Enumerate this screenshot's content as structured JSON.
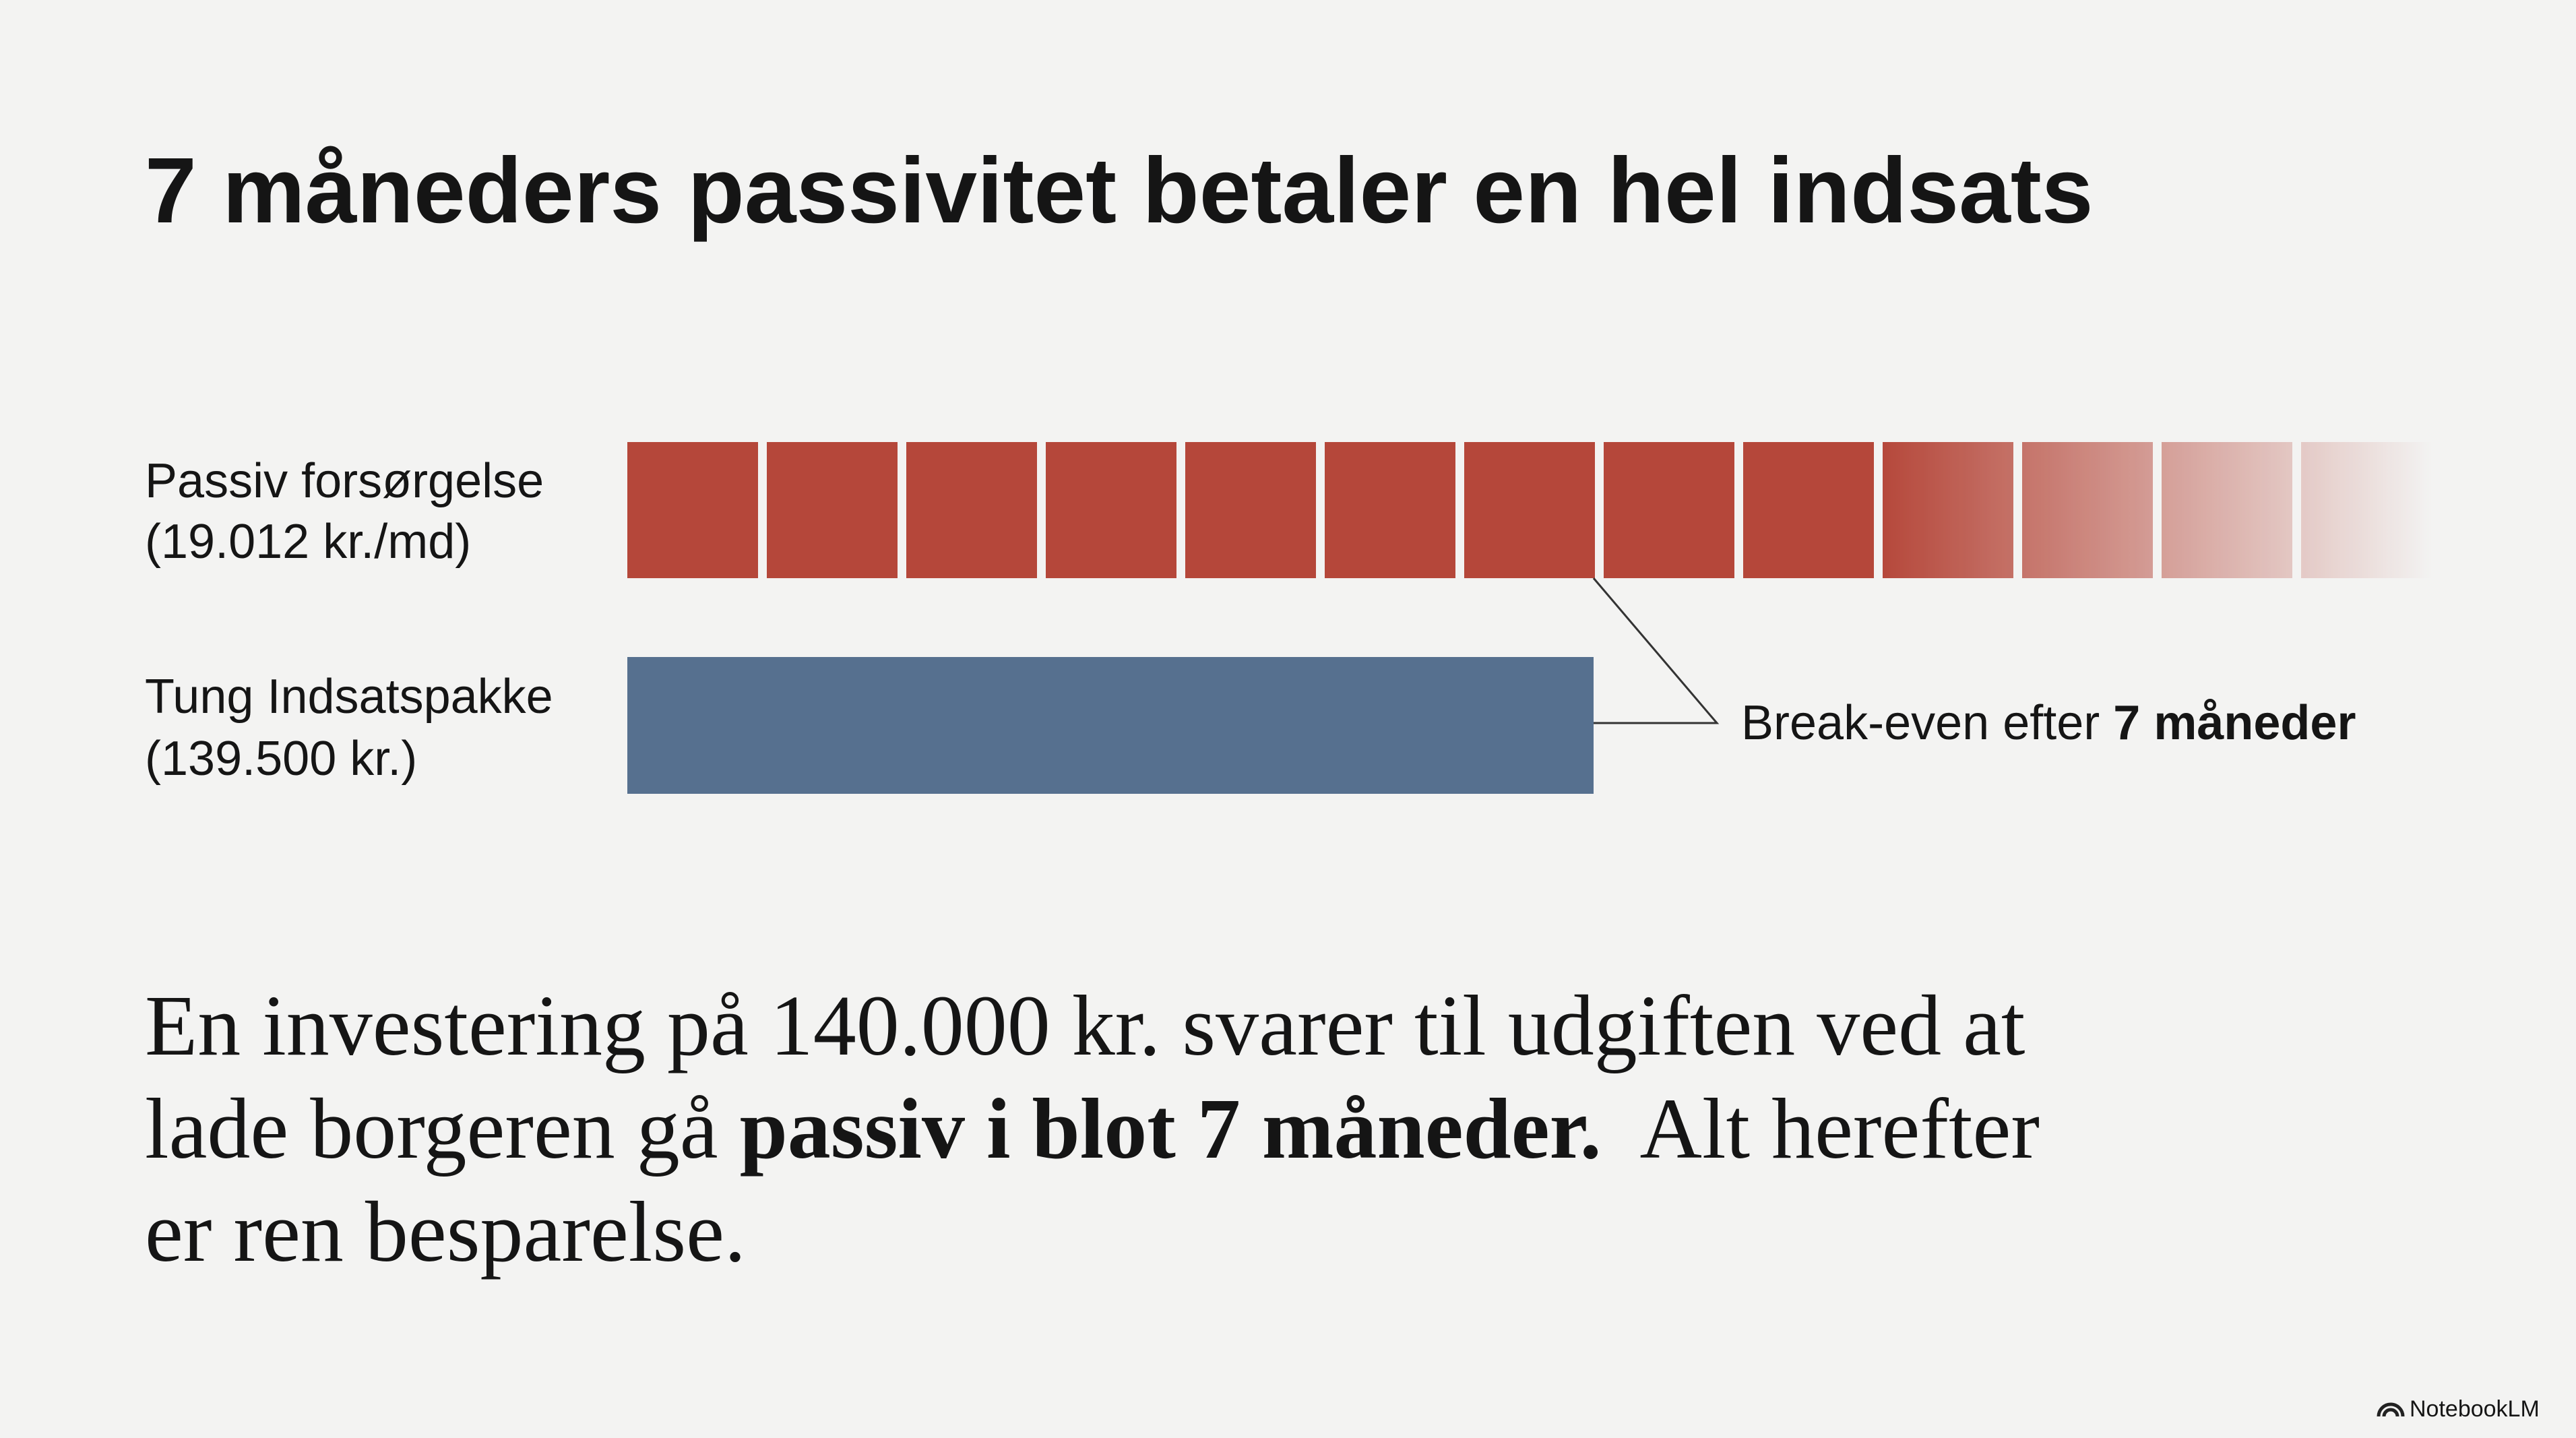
{
  "header": {
    "title": "7 måneders passivitet betaler en hel indsats"
  },
  "rows": [
    {
      "label": "Passiv forsørgelse",
      "sublabel": "(19.012 kr./md)"
    },
    {
      "label": "Tung Indsatspakke",
      "sublabel": "(139.500 kr.)"
    }
  ],
  "annotation": {
    "text": "Break-even efter ",
    "emphasis": "7 måneder"
  },
  "body": {
    "line1": "En investering på 140.000 kr. svarer til udgiften ved at",
    "line2": {
      "start": "lade borgeren gå ",
      "emphasis": "passiv i blot 7 måneder.",
      "end": "  Alt herefter"
    },
    "line3": "er ren besparelse."
  },
  "footer": {
    "brand": "NotebookLM"
  }
}
